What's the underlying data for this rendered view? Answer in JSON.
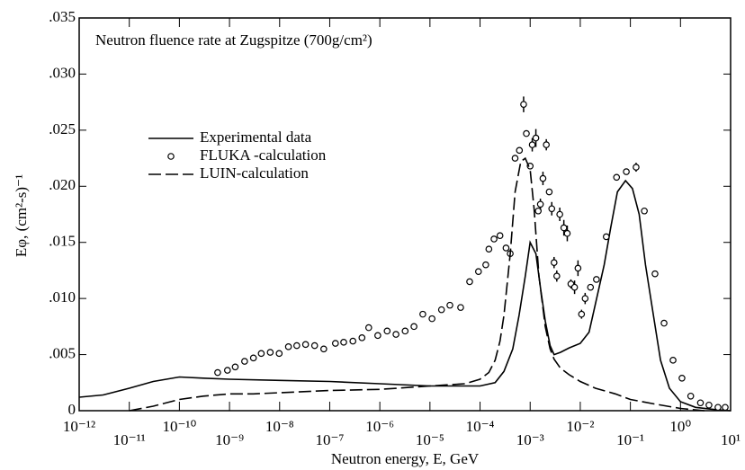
{
  "chart_data": {
    "type": "line",
    "title": "Neutron fluence rate at Zugspitze (700g/cm²)",
    "x_label": "Neutron energy, E, GeV",
    "y_label": "Eφ, (cm²-s)⁻¹",
    "xscale": "log",
    "xlim": [
      1e-12,
      10
    ],
    "ylim": [
      0,
      0.035
    ],
    "xticks": [
      {
        "value": 1e-12,
        "label": "10⁻¹²"
      },
      {
        "value": 1e-11,
        "label": "10⁻¹¹"
      },
      {
        "value": 1e-10,
        "label": "10⁻¹⁰"
      },
      {
        "value": 1e-09,
        "label": "10⁻⁹"
      },
      {
        "value": 1e-08,
        "label": "10⁻⁸"
      },
      {
        "value": 1e-07,
        "label": "10⁻⁷"
      },
      {
        "value": 1e-06,
        "label": "10⁻⁶"
      },
      {
        "value": 1e-05,
        "label": "10⁻⁵"
      },
      {
        "value": 0.0001,
        "label": "10⁻⁴"
      },
      {
        "value": 0.001,
        "label": "10⁻³"
      },
      {
        "value": 0.01,
        "label": "10⁻²"
      },
      {
        "value": 0.1,
        "label": "10⁻¹"
      },
      {
        "value": 1,
        "label": "10⁰"
      },
      {
        "value": 10,
        "label": "10¹"
      }
    ],
    "yticks": [
      0,
      {
        "value": 0.005,
        "label": ".005"
      },
      {
        "value": 0.01,
        "label": ".010"
      },
      {
        "value": 0.015,
        "label": ".015"
      },
      {
        "value": 0.02,
        "label": ".020"
      },
      {
        "value": 0.025,
        "label": ".025"
      },
      {
        "value": 0.03,
        "label": ".030"
      },
      {
        "value": 0.035,
        "label": ".035"
      }
    ],
    "series": [
      {
        "name": "Experimental data",
        "style": "solid",
        "color": "#000000",
        "x": [
          1e-12,
          3e-12,
          1e-11,
          3e-11,
          1e-10,
          3e-10,
          1e-09,
          1e-08,
          1e-07,
          1e-06,
          1e-05,
          0.0001,
          0.0002,
          0.0003,
          0.00045,
          0.0006,
          0.0008,
          0.001,
          0.0013,
          0.0016,
          0.002,
          0.0025,
          0.003,
          0.004,
          0.006,
          0.01,
          0.015,
          0.02,
          0.03,
          0.04,
          0.055,
          0.08,
          0.11,
          0.15,
          0.2,
          0.3,
          0.4,
          0.6,
          1,
          2,
          5,
          10
        ],
        "values": [
          0.0012,
          0.0014,
          0.002,
          0.0026,
          0.003,
          0.0029,
          0.0028,
          0.0027,
          0.0026,
          0.0024,
          0.0022,
          0.0022,
          0.0025,
          0.0035,
          0.0055,
          0.0085,
          0.012,
          0.015,
          0.014,
          0.011,
          0.008,
          0.0058,
          0.005,
          0.0052,
          0.0056,
          0.006,
          0.007,
          0.0095,
          0.013,
          0.0162,
          0.0195,
          0.0205,
          0.0198,
          0.0175,
          0.013,
          0.008,
          0.0045,
          0.002,
          0.0008,
          0.0003,
          0.0001,
          0
        ]
      },
      {
        "name": "FLUKA -calculation",
        "style": "markers",
        "color": "#000000",
        "x": [
          5.8e-10,
          9.1e-10,
          1.3e-09,
          2e-09,
          3e-09,
          4.3e-09,
          6.5e-09,
          9.8e-09,
          1.5e-08,
          2.2e-08,
          3.3e-08,
          5e-08,
          7.6e-08,
          1.3e-07,
          1.9e-07,
          2.9e-07,
          4.4e-07,
          6e-07,
          9.1e-07,
          1.4e-06,
          2.1e-06,
          3.2e-06,
          4.8e-06,
          7.2e-06,
          1.1e-05,
          1.7e-05,
          2.5e-05,
          4.1e-05,
          6.2e-05,
          9.3e-05,
          0.00013,
          0.00015,
          0.00019,
          0.00025,
          0.00033,
          0.0004,
          0.0005,
          0.00061,
          0.00074,
          0.00084,
          0.001,
          0.0011,
          0.0013,
          0.00145,
          0.0016,
          0.0018,
          0.0021,
          0.0024,
          0.0027,
          0.003,
          0.0034,
          0.0039,
          0.0047,
          0.0055,
          0.0065,
          0.0077,
          0.009,
          0.0106,
          0.0125,
          0.016,
          0.021,
          0.033,
          0.053,
          0.083,
          0.13,
          0.19,
          0.31,
          0.47,
          0.71,
          1.07,
          1.6,
          2.5,
          3.7,
          5.6,
          7.8
        ],
        "values": [
          0.0034,
          0.0036,
          0.0039,
          0.0044,
          0.0047,
          0.0051,
          0.0052,
          0.0051,
          0.0057,
          0.0058,
          0.0059,
          0.0058,
          0.0055,
          0.006,
          0.0061,
          0.0062,
          0.0065,
          0.0074,
          0.0067,
          0.0071,
          0.0068,
          0.0071,
          0.0075,
          0.0086,
          0.0082,
          0.009,
          0.0094,
          0.0092,
          0.0115,
          0.0124,
          0.013,
          0.0144,
          0.0153,
          0.0156,
          0.0145,
          0.014,
          0.0225,
          0.0232,
          0.0273,
          0.0247,
          0.0218,
          0.0237,
          0.0243,
          0.0178,
          0.0184,
          0.0207,
          0.0237,
          0.0195,
          0.018,
          0.0132,
          0.012,
          0.0175,
          0.0163,
          0.0158,
          0.0113,
          0.011,
          0.0127,
          0.0086,
          0.01,
          0.011,
          0.0117,
          0.0155,
          0.0208,
          0.0213,
          0.0217,
          0.0178,
          0.0122,
          0.0078,
          0.0045,
          0.0029,
          0.0013,
          0.0007,
          0.0005,
          0.0003,
          0.0003
        ],
        "errors": [
          null,
          null,
          null,
          null,
          null,
          null,
          null,
          null,
          null,
          null,
          null,
          null,
          null,
          null,
          null,
          null,
          null,
          null,
          null,
          null,
          null,
          null,
          null,
          null,
          null,
          null,
          null,
          null,
          null,
          null,
          null,
          null,
          null,
          null,
          null,
          null,
          null,
          null,
          0.0007,
          null,
          null,
          0.0006,
          0.0008,
          null,
          0.0005,
          0.0006,
          0.0005,
          null,
          0.0006,
          0.0005,
          0.0005,
          0.0006,
          0.0007,
          0.0007,
          0.0004,
          0.0006,
          0.0007,
          0.0004,
          0.0005,
          null,
          null,
          null,
          null,
          null,
          0.0004,
          null,
          null,
          null,
          null,
          null,
          null,
          null,
          null,
          null,
          null
        ]
      },
      {
        "name": "LUIN-calculation",
        "style": "dashed",
        "color": "#000000",
        "x": [
          1e-11,
          3e-11,
          1e-10,
          3e-10,
          1e-09,
          3e-09,
          1e-08,
          1e-07,
          1e-06,
          1e-05,
          5e-05,
          0.0001,
          0.00015,
          0.0002,
          0.00025,
          0.0003,
          0.0004,
          0.0005,
          0.00065,
          0.0008,
          0.001,
          0.0012,
          0.0015,
          0.002,
          0.0025,
          0.003,
          0.004,
          0.006,
          0.01,
          0.02,
          0.05,
          0.1,
          0.3,
          1,
          3
        ],
        "values": [
          0,
          0.0004,
          0.001,
          0.0013,
          0.0015,
          0.0015,
          0.0016,
          0.0018,
          0.0019,
          0.0022,
          0.0024,
          0.0028,
          0.0034,
          0.0045,
          0.0062,
          0.0085,
          0.014,
          0.0195,
          0.0222,
          0.0225,
          0.0215,
          0.018,
          0.012,
          0.0075,
          0.0055,
          0.0046,
          0.0038,
          0.0032,
          0.0026,
          0.002,
          0.0015,
          0.001,
          0.0006,
          0.0002,
          0
        ]
      }
    ]
  }
}
